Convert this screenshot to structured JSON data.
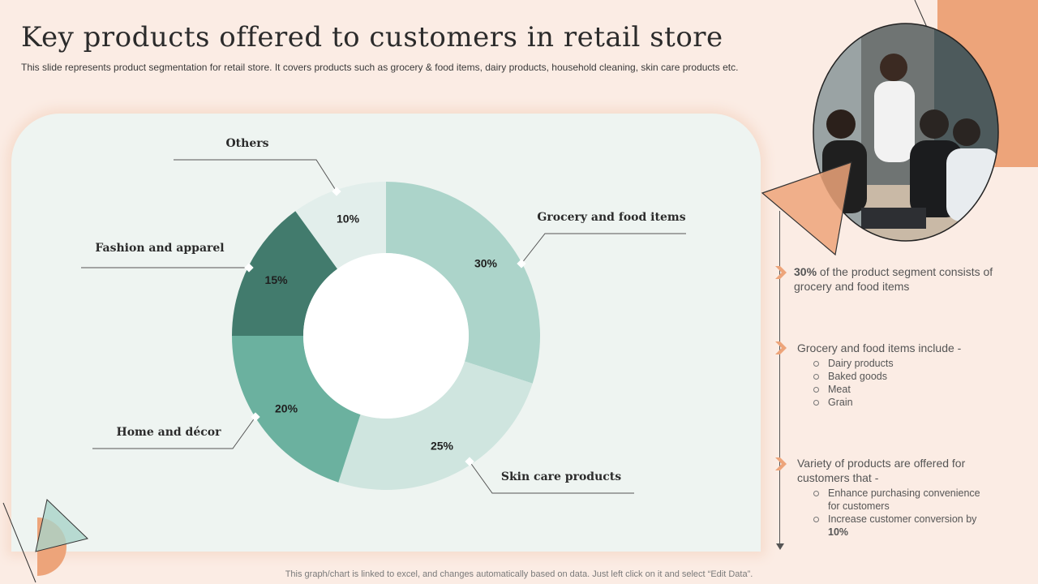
{
  "header": {
    "title": "Key products offered to customers in retail store",
    "subtitle": "This slide represents product segmentation for retail store. It covers products such as grocery & food items, dairy products, household cleaning, skin care products etc."
  },
  "chart_data": {
    "type": "pie",
    "donut": true,
    "categories": [
      "Grocery and food items",
      "Skin care products",
      "Home and décor",
      "Fashion and apparel",
      "Others"
    ],
    "values": [
      30,
      25,
      20,
      15,
      10
    ],
    "value_labels": [
      "30%",
      "25%",
      "20%",
      "15%",
      "10%"
    ],
    "colors": [
      "#acd4ca",
      "#cfe5df",
      "#6bb19f",
      "#427b6d",
      "#e2eeeb"
    ],
    "unit": "%"
  },
  "notes": {
    "note1": {
      "highlight": "30%",
      "text": " of the product segment consists of grocery and food items"
    },
    "note2": {
      "heading": "Grocery and food items include -",
      "items": [
        "Dairy products",
        "Baked goods",
        "Meat",
        "Grain"
      ]
    },
    "note3": {
      "heading": "Variety of products are offered for customers that -",
      "item1": "Enhance purchasing convenience for customers",
      "item2_text": "Increase customer conversion by ",
      "item2_highlight": "10%"
    }
  },
  "photo": {
    "icon": "team-meeting-photo"
  },
  "footer": {
    "text": "This graph/chart is linked to excel, and changes automatically based on data. Just left click on it and select “Edit Data”."
  },
  "colors": {
    "background": "#fbece4",
    "panel": "#eef4f1",
    "accent": "#eda47a",
    "teal_dark": "#427b6d"
  }
}
